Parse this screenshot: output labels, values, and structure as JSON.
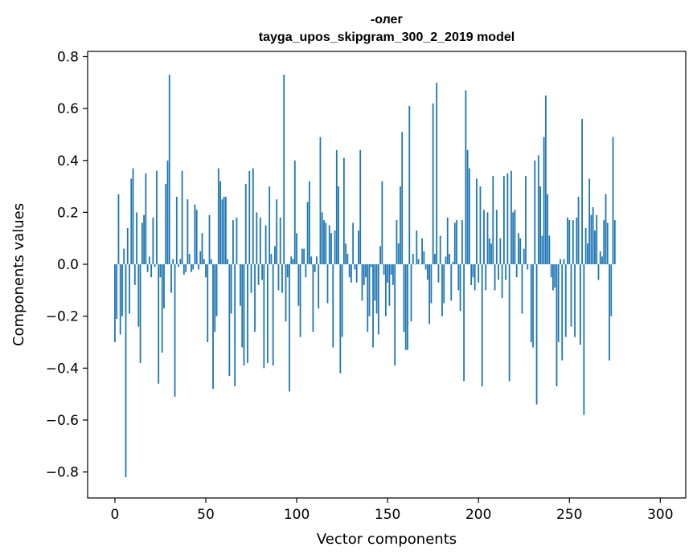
{
  "chart_data": {
    "type": "bar",
    "title_line1": "-олег",
    "title_line2": "tayga_upos_skipgram_300_2_2019 model",
    "xlabel": "Vector components",
    "ylabel": "Components values",
    "xlim": [
      -15,
      314
    ],
    "ylim": [
      -0.9,
      0.82
    ],
    "xticks": [
      0,
      50,
      100,
      150,
      200,
      250,
      300
    ],
    "xtick_labels": [
      "0",
      "50",
      "100",
      "150",
      "200",
      "250",
      "300"
    ],
    "yticks": [
      -0.8,
      -0.6,
      -0.4,
      -0.2,
      0.0,
      0.2,
      0.4,
      0.6,
      0.8
    ],
    "ytick_labels": [
      "−0.8",
      "−0.6",
      "−0.4",
      "−0.2",
      "0.0",
      "0.2",
      "0.4",
      "0.6",
      "0.8"
    ],
    "bar_color": "#1f77b4",
    "values": [
      -0.3,
      -0.21,
      0.27,
      -0.27,
      -0.2,
      0.06,
      -0.82,
      0.14,
      -0.19,
      0.33,
      0.37,
      -0.08,
      0.2,
      -0.24,
      -0.38,
      0.16,
      0.19,
      0.35,
      -0.03,
      0.03,
      -0.05,
      0.18,
      -0.01,
      0.36,
      -0.46,
      -0.05,
      -0.34,
      -0.17,
      0.31,
      0.4,
      0.73,
      -0.11,
      0.02,
      -0.51,
      0.26,
      -0.01,
      0.02,
      0.36,
      -0.04,
      -0.03,
      0.25,
      0.04,
      -0.03,
      -0.02,
      0.23,
      0.21,
      -0.02,
      0.05,
      0.12,
      0.02,
      -0.05,
      -0.3,
      0.19,
      0.02,
      -0.48,
      -0.26,
      -0.2,
      0.37,
      0.32,
      0.25,
      0.26,
      0.26,
      0.02,
      -0.43,
      -0.19,
      0.17,
      -0.47,
      0.18,
      0.0,
      -0.16,
      -0.32,
      -0.39,
      0.31,
      -0.38,
      0.36,
      -0.11,
      0.37,
      -0.26,
      0.2,
      -0.08,
      0.18,
      -0.06,
      -0.4,
      0.15,
      -0.38,
      0.3,
      0.04,
      -0.39,
      0.07,
      0.25,
      -0.1,
      0.18,
      -0.11,
      0.73,
      -0.22,
      -0.05,
      -0.49,
      0.03,
      0.02,
      0.4,
      0.12,
      -0.16,
      -0.28,
      0.06,
      0.06,
      -0.05,
      0.24,
      0.32,
      0.03,
      -0.26,
      -0.03,
      0.03,
      -0.17,
      0.49,
      0.2,
      0.17,
      0.16,
      -0.15,
      0.15,
      0.12,
      -0.32,
      0.13,
      0.44,
      0.3,
      -0.42,
      -0.28,
      0.41,
      0.08,
      0.04,
      -0.05,
      -0.07,
      0.16,
      -0.02,
      -0.07,
      0.13,
      0.44,
      -0.14,
      -0.08,
      -0.05,
      -0.26,
      -0.2,
      -0.01,
      -0.32,
      -0.14,
      -0.19,
      -0.27,
      0.07,
      0.32,
      -0.04,
      -0.2,
      -0.07,
      -0.16,
      -0.04,
      -0.08,
      -0.39,
      0.17,
      0.08,
      0.3,
      0.51,
      -0.26,
      -0.33,
      -0.33,
      0.61,
      -0.22,
      0.04,
      0.0,
      0.13,
      0.02,
      0.0,
      0.1,
      0.05,
      -0.02,
      -0.06,
      -0.23,
      -0.15,
      0.62,
      0.04,
      0.7,
      -0.07,
      0.11,
      -0.2,
      -0.15,
      0.03,
      0.18,
      0.04,
      -0.14,
      0.01,
      0.16,
      0.17,
      -0.1,
      -0.18,
      0.17,
      -0.45,
      0.67,
      0.44,
      0.37,
      -0.08,
      -0.05,
      -0.1,
      0.33,
      -0.07,
      0.3,
      -0.47,
      0.21,
      -0.1,
      0.2,
      0.1,
      0.08,
      0.34,
      -0.1,
      0.21,
      -0.06,
      0.1,
      -0.13,
      0.34,
      -0.06,
      0.35,
      -0.45,
      0.36,
      0.2,
      0.21,
      -0.05,
      0.12,
      0.1,
      -0.19,
      0.06,
      0.34,
      -0.02,
      0.0,
      -0.3,
      -0.32,
      0.4,
      -0.54,
      0.42,
      0.3,
      0.11,
      0.49,
      0.65,
      0.27,
      0.11,
      -0.05,
      -0.1,
      -0.09,
      -0.47,
      -0.3,
      0.02,
      -0.37,
      0.02,
      -0.28,
      0.18,
      0.17,
      -0.24,
      0.17,
      -0.28,
      0.18,
      0.26,
      -0.31,
      0.56,
      -0.58,
      0.14,
      0.08,
      0.33,
      0.19,
      0.22,
      0.13,
      0.19,
      -0.06,
      0.05,
      0.03,
      0.17,
      0.27,
      0.16,
      -0.37,
      -0.2,
      0.49,
      0.17
    ],
    "grid": false,
    "legend": "none"
  }
}
